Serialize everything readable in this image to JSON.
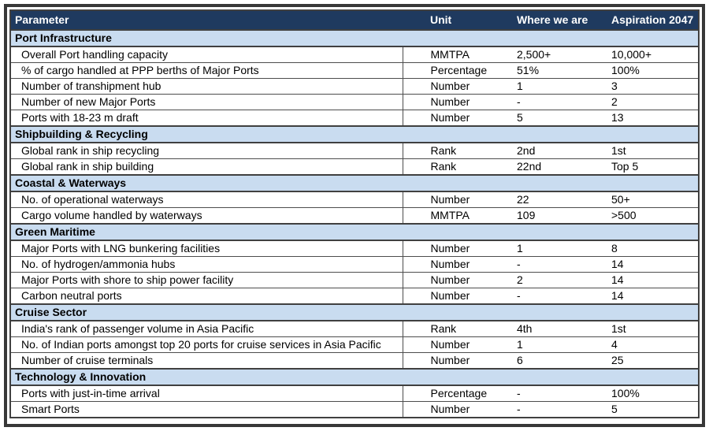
{
  "table": {
    "columns": [
      "Parameter",
      "Unit",
      "Where we are",
      "Aspiration 2047"
    ],
    "sections": [
      {
        "title": "Port Infrastructure",
        "rows": [
          {
            "parameter": "Overall Port handling capacity",
            "unit": "MMTPA",
            "where_we_are": "2,500+",
            "aspiration_2047": "10,000+"
          },
          {
            "parameter": "% of cargo handled at PPP berths of Major Ports",
            "unit": "Percentage",
            "where_we_are": "51%",
            "aspiration_2047": "100%"
          },
          {
            "parameter": "Number of transhipment hub",
            "unit": "Number",
            "where_we_are": "1",
            "aspiration_2047": "3"
          },
          {
            "parameter": "Number of new Major Ports",
            "unit": "Number",
            "where_we_are": "-",
            "aspiration_2047": "2"
          },
          {
            "parameter": "Ports with 18-23 m draft",
            "unit": "Number",
            "where_we_are": "5",
            "aspiration_2047": "13"
          }
        ]
      },
      {
        "title": "Shipbuilding & Recycling",
        "rows": [
          {
            "parameter": "Global rank in ship recycling",
            "unit": "Rank",
            "where_we_are": "2nd",
            "aspiration_2047": "1st"
          },
          {
            "parameter": "Global rank in ship building",
            "unit": "Rank",
            "where_we_are": "22nd",
            "aspiration_2047": "Top 5"
          }
        ]
      },
      {
        "title": "Coastal & Waterways",
        "rows": [
          {
            "parameter": "No. of operational waterways",
            "unit": "Number",
            "where_we_are": "22",
            "aspiration_2047": "50+"
          },
          {
            "parameter": "Cargo volume handled by waterways",
            "unit": "MMTPA",
            "where_we_are": "109",
            "aspiration_2047": ">500"
          }
        ]
      },
      {
        "title": "Green Maritime",
        "rows": [
          {
            "parameter": "Major Ports with LNG bunkering facilities",
            "unit": "Number",
            "where_we_are": "1",
            "aspiration_2047": "8"
          },
          {
            "parameter": "No. of hydrogen/ammonia hubs",
            "unit": "Number",
            "where_we_are": "-",
            "aspiration_2047": "14"
          },
          {
            "parameter": "Major Ports with shore to ship power facility",
            "unit": "Number",
            "where_we_are": "2",
            "aspiration_2047": "14"
          },
          {
            "parameter": "Carbon neutral ports",
            "unit": "Number",
            "where_we_are": "-",
            "aspiration_2047": "14"
          }
        ]
      },
      {
        "title": "Cruise Sector",
        "rows": [
          {
            "parameter": "India's rank of passenger volume in Asia Pacific",
            "unit": "Rank",
            "where_we_are": "4th",
            "aspiration_2047": "1st"
          },
          {
            "parameter": "No. of Indian ports amongst top 20 ports for cruise services in Asia Pacific",
            "unit": "Number",
            "where_we_are": "1",
            "aspiration_2047": "4"
          },
          {
            "parameter": "Number of cruise terminals",
            "unit": "Number",
            "where_we_are": "6",
            "aspiration_2047": "25"
          }
        ]
      },
      {
        "title": "Technology & Innovation",
        "rows": [
          {
            "parameter": "Ports with just-in-time arrival",
            "unit": "Percentage",
            "where_we_are": "-",
            "aspiration_2047": "100%"
          },
          {
            "parameter": "Smart Ports",
            "unit": "Number",
            "where_we_are": "-",
            "aspiration_2047": "5"
          }
        ]
      }
    ]
  },
  "colors": {
    "header_bg": "#1F3A5F",
    "section_bg": "#C9DCF0",
    "grid": "#404040",
    "grid_light": "#4d4d4d",
    "frame_border": "#383838",
    "header_text": "#ffffff",
    "body_text": "#000000"
  }
}
